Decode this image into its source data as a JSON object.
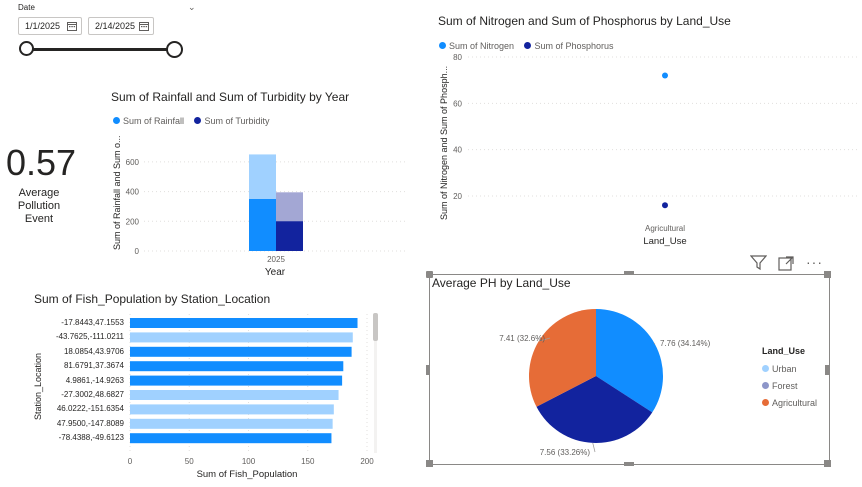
{
  "slicer": {
    "label": "Date",
    "start_value": "1/1/2025",
    "end_value": "2/14/2025"
  },
  "card": {
    "value": "0.57",
    "label_line1": "Average Pollution",
    "label_line2": "Event"
  },
  "rainfall_chart": {
    "title": "Sum of Rainfall and Sum of Turbidity by Year",
    "legend": [
      "Sum of Rainfall",
      "Sum of Turbidity"
    ],
    "ylabel": "Sum of Rainfall and Sum o...",
    "xlabel": "Year",
    "yticks": [
      "0",
      "200",
      "400",
      "600"
    ]
  },
  "nitrogen_chart": {
    "title": "Sum of Nitrogen and Sum of Phosphorus by Land_Use",
    "legend": [
      "Sum of Nitrogen",
      "Sum of Phosphorus"
    ],
    "ylabel": "Sum of Nitrogen and Sum of Phosph...",
    "xlabel": "Land_Use",
    "yticks": [
      "20",
      "40",
      "60",
      "80"
    ]
  },
  "fish_chart": {
    "title": "Sum of Fish_Population by Station_Location",
    "ylabel": "Station_Location",
    "xlabel": "Sum of Fish_Population",
    "xticks": [
      "0",
      "50",
      "100",
      "150",
      "200"
    ]
  },
  "ph_chart": {
    "title": "Average PH by Land_Use",
    "legend_title": "Land_Use"
  },
  "chart_data": [
    {
      "type": "bar",
      "title": "Sum of Rainfall and Sum of Turbidity by Year",
      "categories": [
        "2025"
      ],
      "series": [
        {
          "name": "Sum of Rainfall",
          "values": [
            650
          ],
          "highlighted": [
            350
          ]
        },
        {
          "name": "Sum of Turbidity",
          "values": [
            395
          ],
          "highlighted": [
            200
          ]
        }
      ],
      "ylim": [
        0,
        700
      ],
      "colors": {
        "Sum of Rainfall": "#118dff",
        "Sum of Turbidity": "#12239e"
      }
    },
    {
      "type": "scatter",
      "title": "Sum of Nitrogen and Sum of Phosphorus by Land_Use",
      "categories": [
        "Agricultural"
      ],
      "series": [
        {
          "name": "Sum of Nitrogen",
          "values": [
            72
          ]
        },
        {
          "name": "Sum of Phosphorus",
          "values": [
            16
          ]
        }
      ],
      "ylim": [
        10,
        85
      ],
      "colors": {
        "Sum of Nitrogen": "#118dff",
        "Sum of Phosphorus": "#12239e"
      }
    },
    {
      "type": "bar",
      "orientation": "horizontal",
      "title": "Sum of Fish_Population by Station_Location",
      "categories": [
        "-17.8443,47.1553",
        "-43.7625,-111.0211",
        "18.0854,43.9706",
        "81.6791,37.3674",
        "4.9861,-14.9263",
        "-27.3002,48.6827",
        "46.0222,-151.6354",
        "47.9500,-147.8089",
        "-78.4388,-49.6123"
      ],
      "values": [
        192,
        188,
        187,
        180,
        179,
        176,
        172,
        171,
        170
      ],
      "highlighted": [
        true,
        false,
        true,
        true,
        true,
        false,
        false,
        false,
        true
      ],
      "xlim": [
        0,
        200
      ]
    },
    {
      "type": "pie",
      "title": "Average PH by Land_Use",
      "labels": [
        "Urban",
        "Forest",
        "Agricultural"
      ],
      "values": [
        7.76,
        7.56,
        7.41
      ],
      "percent": [
        34.14,
        33.26,
        32.6
      ],
      "data_labels": [
        "7.76 (34.14%)",
        "7.56 (33.26%)",
        "7.41 (32.6%)"
      ],
      "colors": {
        "Urban": "#118dff",
        "Forest": "#12239e",
        "Agricultural": "#e66c37"
      },
      "legend_colors": {
        "Urban": "#a0d1ff",
        "Forest": "#8d96c9",
        "Agricultural": "#e66c37"
      }
    }
  ]
}
